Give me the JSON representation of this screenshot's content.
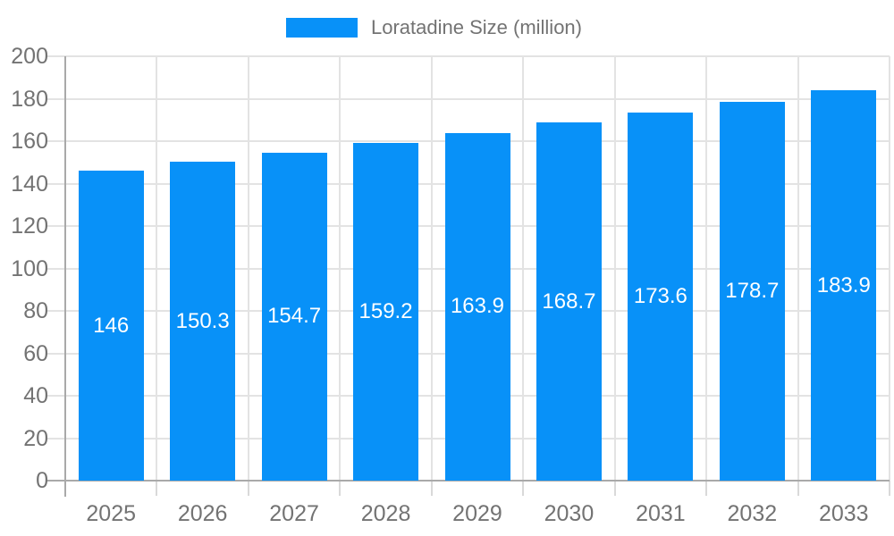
{
  "chart_data": {
    "type": "bar",
    "legend": "Loratadine Size (million)",
    "series_name": "Loratadine Size (million)",
    "categories": [
      "2025",
      "2026",
      "2027",
      "2028",
      "2029",
      "2030",
      "2031",
      "2032",
      "2033"
    ],
    "values": [
      146,
      150.3,
      154.7,
      159.2,
      163.9,
      168.7,
      173.6,
      178.7,
      183.9
    ],
    "value_labels": [
      "146",
      "150.3",
      "154.7",
      "159.2",
      "163.9",
      "168.7",
      "173.6",
      "178.7",
      "183.9"
    ],
    "ylim": [
      0,
      200
    ],
    "ytick_step": 20,
    "ytick_labels": [
      "0",
      "20",
      "40",
      "60",
      "80",
      "100",
      "120",
      "140",
      "160",
      "180",
      "200"
    ],
    "grid": "on",
    "legend_position": "top",
    "colors": {
      "bar": "#0891f8",
      "grid": "#e3e3e3",
      "axis": "#a9a9a9",
      "tick": "#d9d9d9",
      "label_text": "#737373",
      "value_label_text": "#ffffff",
      "background": "#ffffff"
    }
  }
}
